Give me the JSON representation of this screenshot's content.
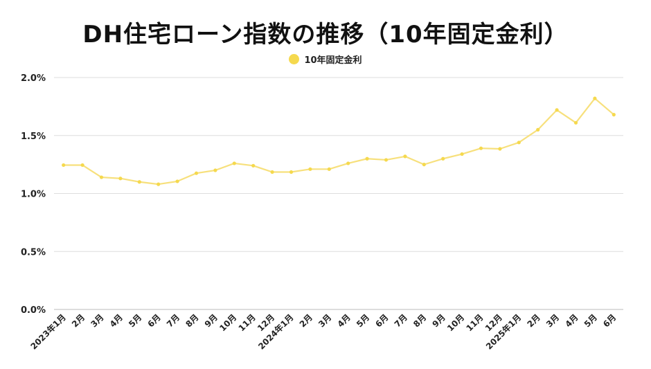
{
  "chart_data": {
    "type": "line",
    "title": "DH住宅ローン指数の推移（10年固定金利）",
    "legend_position": "top-center",
    "grid": true,
    "colors": {
      "line": "#f7e07c",
      "marker": "#f5d94e",
      "grid": "#dddddd",
      "axis": "#bbbbbb"
    },
    "categories": [
      "2023年1月",
      "2月",
      "3月",
      "4月",
      "5月",
      "6月",
      "7月",
      "8月",
      "9月",
      "10月",
      "11月",
      "12月",
      "2024年1月",
      "2月",
      "3月",
      "4月",
      "5月",
      "6月",
      "7月",
      "8月",
      "9月",
      "10月",
      "11月",
      "12月",
      "2025年1月",
      "2月",
      "3月",
      "4月",
      "5月",
      "6月"
    ],
    "series": [
      {
        "name": "10年固定金利",
        "values": [
          1.245,
          1.245,
          1.14,
          1.13,
          1.1,
          1.08,
          1.105,
          1.175,
          1.2,
          1.26,
          1.24,
          1.185,
          1.185,
          1.21,
          1.21,
          1.26,
          1.3,
          1.29,
          1.32,
          1.25,
          1.3,
          1.34,
          1.39,
          1.385,
          1.44,
          1.55,
          1.72,
          1.61,
          1.82,
          1.68
        ]
      }
    ],
    "yticks": [
      "0.0%",
      "0.5%",
      "1.0%",
      "1.5%",
      "2.0%"
    ],
    "ylim": [
      0,
      2.0
    ]
  }
}
